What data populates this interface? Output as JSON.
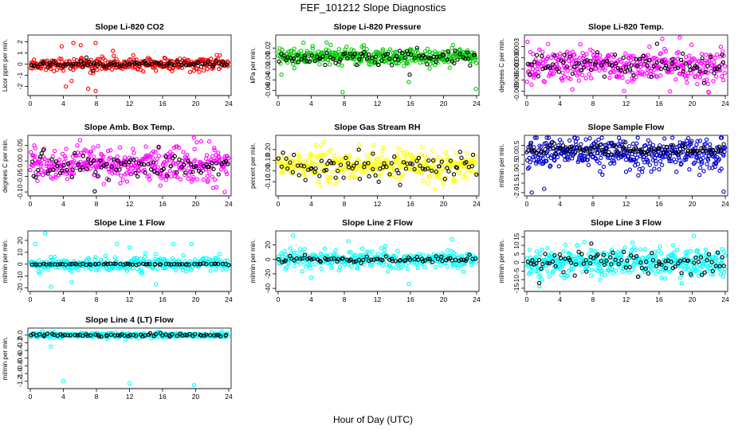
{
  "figure": {
    "title": "FEF_101212  Slope Diagnostics",
    "xlabel": "Hour of Day (UTC)"
  },
  "chart_data": [
    {
      "type": "scatter",
      "title": "Slope Li-820 CO2",
      "ylabel": "Licor ppm per min.",
      "xlim": [
        0,
        24
      ],
      "ylim": [
        -2.6,
        2.4
      ],
      "xticks": [
        "0",
        "4",
        "8",
        "12",
        "16",
        "20",
        "24"
      ],
      "yticks": [
        {
          "v": -2,
          "t": "-2"
        },
        {
          "v": -1,
          "t": "-1"
        },
        {
          "v": 0,
          "t": "0"
        },
        {
          "v": 1,
          "t": "1"
        },
        {
          "v": 2,
          "t": "2"
        }
      ],
      "series": [
        {
          "color": "#ff0000",
          "center": 0.0,
          "spread": 0.35,
          "count": 330,
          "outliers": [
            [
              4.3,
              -2.0
            ],
            [
              5.0,
              -1.5
            ],
            [
              7.0,
              -2.2
            ],
            [
              7.9,
              -2.4
            ],
            [
              5.2,
              1.9
            ],
            [
              3.8,
              1.6
            ],
            [
              6.1,
              1.7
            ],
            [
              7.9,
              1.9
            ],
            [
              10.0,
              1.2
            ]
          ]
        },
        {
          "color": "#000000",
          "center": 0.0,
          "spread": 0.18,
          "count": 90,
          "outliers": [
            [
              6.8,
              0.6
            ],
            [
              7.6,
              -0.6
            ]
          ]
        }
      ]
    },
    {
      "type": "scatter",
      "title": "Slope Li-820 Pressure",
      "ylabel": "kPa per min.",
      "xlim": [
        0,
        24
      ],
      "ylim": [
        -0.065,
        0.04
      ],
      "xticks": [
        "0",
        "4",
        "8",
        "12",
        "16",
        "20",
        "24"
      ],
      "yticks": [
        {
          "v": -0.06,
          "t": "-0.06"
        },
        {
          "v": -0.04,
          "t": "-0.04"
        },
        {
          "v": -0.02,
          "t": "-0.02"
        },
        {
          "v": 0.0,
          "t": "0.00"
        },
        {
          "v": 0.02,
          "t": "0.02"
        }
      ],
      "series": [
        {
          "color": "#00cc00",
          "center": 0.004,
          "spread": 0.011,
          "count": 380,
          "outliers": [
            [
              7.8,
              -0.063
            ],
            [
              23.9,
              -0.057
            ],
            [
              0.4,
              -0.03
            ],
            [
              15.8,
              -0.044
            ]
          ]
        },
        {
          "color": "#000000",
          "center": 0.003,
          "spread": 0.009,
          "count": 90,
          "outliers": [
            [
              15.9,
              -0.03
            ]
          ]
        }
      ]
    },
    {
      "type": "scatter",
      "title": "Slope Li-820 Temp.",
      "ylabel": "degrees C per min.",
      "xlim": [
        0,
        24
      ],
      "ylim": [
        -0.0095,
        0.0055
      ],
      "xticks": [
        "0",
        "4",
        "8",
        "12",
        "16",
        "20",
        "24"
      ],
      "yticks": [
        {
          "v": -0.009,
          "t": "-0.009"
        },
        {
          "v": -0.006,
          "t": "-0.006"
        },
        {
          "v": -0.003,
          "t": "-0.003"
        },
        {
          "v": 0.0,
          "t": "0.000"
        },
        {
          "v": 0.003,
          "t": "0.003"
        }
      ],
      "series": [
        {
          "color": "#ff00ff",
          "center": -0.002,
          "spread": 0.0028,
          "count": 400,
          "outliers": [
            [
              22.0,
              -0.0093
            ],
            [
              5.5,
              -0.0085
            ]
          ]
        },
        {
          "color": "#000000",
          "center": -0.002,
          "spread": 0.002,
          "count": 90,
          "outliers": []
        }
      ]
    },
    {
      "type": "scatter",
      "title": "Slope Amb. Box Temp.",
      "ylabel": "degrees C per min.",
      "xlim": [
        0,
        24
      ],
      "ylim": [
        -0.105,
        0.075
      ],
      "xticks": [
        "0",
        "4",
        "8",
        "12",
        "16",
        "20",
        "24"
      ],
      "yticks": [
        {
          "v": -0.1,
          "t": "-0.10"
        },
        {
          "v": -0.05,
          "t": "-0.05"
        },
        {
          "v": 0.0,
          "t": "0.00"
        },
        {
          "v": 0.05,
          "t": "0.05"
        }
      ],
      "series": [
        {
          "color": "#ff00ff",
          "center": -0.012,
          "spread": 0.036,
          "count": 400,
          "outliers": [
            [
              23.5,
              -0.1
            ]
          ]
        },
        {
          "color": "#000000",
          "center": -0.015,
          "spread": 0.028,
          "count": 90,
          "outliers": [
            [
              7.8,
              -0.098
            ]
          ]
        }
      ]
    },
    {
      "type": "scatter",
      "title": "Slope Gas Stream RH",
      "ylabel": "percent per min.",
      "xlim": [
        0,
        24
      ],
      "ylim": [
        -0.21,
        0.31
      ],
      "xticks": [
        "0",
        "4",
        "8",
        "12",
        "16",
        "20",
        "24"
      ],
      "yticks": [
        {
          "v": -0.1,
          "t": "-0.10"
        },
        {
          "v": 0.0,
          "t": "0.00"
        },
        {
          "v": 0.1,
          "t": "0.10"
        },
        {
          "v": 0.2,
          "t": "0.20"
        }
      ],
      "series": [
        {
          "color": "#ffff00",
          "center": 0.05,
          "spread": 0.085,
          "count": 380,
          "outliers": []
        },
        {
          "color": "#000000",
          "center": 0.05,
          "spread": 0.07,
          "count": 90,
          "outliers": []
        }
      ]
    },
    {
      "type": "scatter",
      "title": "Slope Sample Flow",
      "ylabel": "ml/min per min.",
      "xlim": [
        0,
        24
      ],
      "ylim": [
        -2.05,
        0.9
      ],
      "xticks": [
        "0",
        "4",
        "8",
        "12",
        "16",
        "20",
        "24"
      ],
      "yticks": [
        {
          "v": -2,
          "t": "-2.0"
        },
        {
          "v": -1.5,
          "t": "-1.5"
        },
        {
          "v": -1,
          "t": "-1.0"
        },
        {
          "v": -0.5,
          "t": "-0.5"
        },
        {
          "v": 0,
          "t": "0.0"
        },
        {
          "v": 0.5,
          "t": "0.5"
        }
      ],
      "series": [
        {
          "color": "#0000cc",
          "center": 0.05,
          "spread": 0.55,
          "count": 420,
          "outliers": [
            [
              0.6,
              -2.0
            ],
            [
              2.1,
              -1.8
            ],
            [
              23.8,
              -1.95
            ]
          ]
        },
        {
          "color": "#000000",
          "center": 0.25,
          "spread": 0.2,
          "count": 90,
          "outliers": []
        }
      ]
    },
    {
      "type": "scatter",
      "title": "Slope Line 1 Flow",
      "ylabel": "ml/min per min.",
      "xlim": [
        0,
        24
      ],
      "ylim": [
        -21,
        26
      ],
      "xticks": [
        "0",
        "4",
        "8",
        "12",
        "16",
        "20",
        "24"
      ],
      "yticks": [
        {
          "v": -20,
          "t": "-20"
        },
        {
          "v": -10,
          "t": "-10"
        },
        {
          "v": 0,
          "t": "0"
        },
        {
          "v": 10,
          "t": "10"
        },
        {
          "v": 20,
          "t": "20"
        }
      ],
      "series": [
        {
          "color": "#00ffff",
          "center": 0,
          "spread": 3.5,
          "count": 330,
          "outliers": [
            [
              1.8,
              26
            ],
            [
              2.5,
              -19
            ],
            [
              0.6,
              17
            ],
            [
              10.5,
              17
            ],
            [
              12.0,
              14
            ],
            [
              17.3,
              17
            ],
            [
              19.5,
              17
            ],
            [
              15.2,
              -17
            ],
            [
              5.0,
              -15
            ]
          ]
        },
        {
          "color": "#000000",
          "center": 0,
          "spread": 0.3,
          "count": 70,
          "outliers": []
        }
      ]
    },
    {
      "type": "scatter",
      "title": "Slope Line 2 Flow",
      "ylabel": "ml/min per min.",
      "xlim": [
        0,
        24
      ],
      "ylim": [
        -41,
        36
      ],
      "xticks": [
        "0",
        "4",
        "8",
        "12",
        "16",
        "20",
        "24"
      ],
      "yticks": [
        {
          "v": -40,
          "t": "-40"
        },
        {
          "v": -20,
          "t": "-20"
        },
        {
          "v": 0,
          "t": "0"
        },
        {
          "v": 20,
          "t": "20"
        }
      ],
      "series": [
        {
          "color": "#00ffff",
          "center": 0,
          "spread": 8,
          "count": 330,
          "outliers": [
            [
              1.8,
              33
            ],
            [
              15.8,
              -34
            ],
            [
              21.0,
              28
            ],
            [
              8.5,
              25
            ],
            [
              4.0,
              -25
            ]
          ]
        },
        {
          "color": "#000000",
          "center": 0,
          "spread": 2.5,
          "count": 80,
          "outliers": []
        }
      ]
    },
    {
      "type": "scatter",
      "title": "Slope Line 3 Flow",
      "ylabel": "ml/min per min.",
      "xlim": [
        0,
        24
      ],
      "ylim": [
        -15.5,
        17
      ],
      "xticks": [
        "0",
        "4",
        "8",
        "12",
        "16",
        "20",
        "24"
      ],
      "yticks": [
        {
          "v": -15,
          "t": "-15"
        },
        {
          "v": -10,
          "t": "-10"
        },
        {
          "v": -5,
          "t": "-5"
        },
        {
          "v": 0,
          "t": "0"
        },
        {
          "v": 5,
          "t": "5"
        },
        {
          "v": 10,
          "t": "10"
        },
        {
          "v": 15,
          "t": "15"
        }
      ],
      "series": [
        {
          "color": "#00ffff",
          "center": 0,
          "spread": 5,
          "count": 420,
          "outliers": [
            [
              20.2,
              15.5
            ],
            [
              1.5,
              -14
            ]
          ]
        },
        {
          "color": "#000000",
          "center": 0,
          "spread": 4,
          "count": 90,
          "outliers": [
            [
              7.8,
              11
            ],
            [
              1.5,
              -12
            ]
          ]
        }
      ]
    },
    {
      "type": "scatter",
      "title": "Slope Line 4 (LT) Flow",
      "ylabel": "ml/min per min.",
      "xlim": [
        0,
        24
      ],
      "ylim": [
        -1.33,
        0.12
      ],
      "xticks": [
        "0",
        "4",
        "8",
        "12",
        "16",
        "20",
        "24"
      ],
      "yticks": [
        {
          "v": -1.2,
          "t": "-1.2"
        },
        {
          "v": -1.0,
          "t": "-1.0"
        },
        {
          "v": -0.8,
          "t": "-0.8"
        },
        {
          "v": -0.6,
          "t": "-0.6"
        },
        {
          "v": -0.4,
          "t": "-0.4"
        },
        {
          "v": -0.2,
          "t": "-0.2"
        },
        {
          "v": 0.0,
          "t": "0.0"
        }
      ],
      "series": [
        {
          "color": "#00ffff",
          "center": 0.0,
          "spread": 0.04,
          "count": 330,
          "outliers": [
            [
              4.0,
              -1.2
            ],
            [
              12.0,
              -1.26
            ],
            [
              19.8,
              -1.3
            ],
            [
              2.5,
              -0.3
            ],
            [
              11.5,
              -0.12
            ]
          ]
        },
        {
          "color": "#000000",
          "center": 0.0,
          "spread": 0.03,
          "count": 70,
          "outliers": []
        }
      ]
    }
  ]
}
